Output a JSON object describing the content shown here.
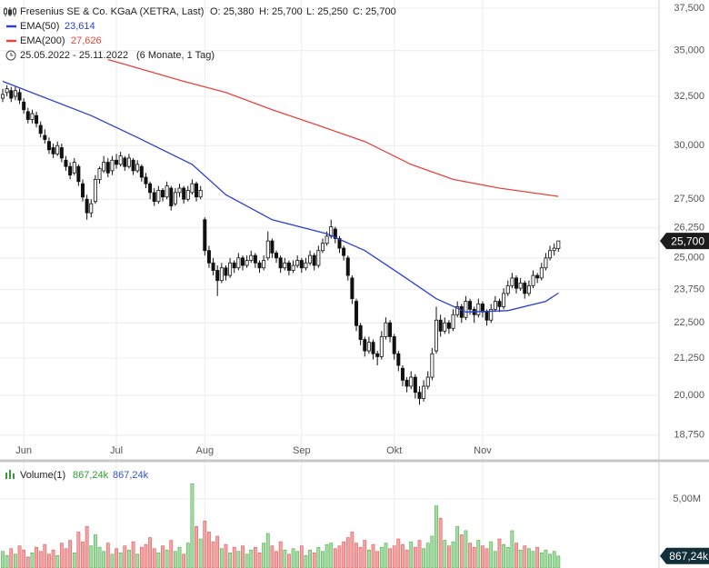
{
  "chart_data": {
    "type": "candlestick",
    "title": "Fresenius SE & Co. KGaA (XETRA, Last)",
    "header_values": [
      "O: 25,380",
      "H: 25,700",
      "L: 25,250",
      "C: 25,700"
    ],
    "subtitle": "25.05.2022 - 25.11.2022",
    "period": "(6 Monate, 1 Tag)",
    "last_label": "25,700",
    "log_scale": true,
    "grid": true,
    "up_color": "#ffffff",
    "down_color": "#111111",
    "xlim": [
      -0.65,
      155.9
    ],
    "xticks": [
      {
        "value": 5,
        "label": "Jun"
      },
      {
        "value": 27,
        "label": "Jul"
      },
      {
        "value": 48,
        "label": "Aug"
      },
      {
        "value": 71,
        "label": "Sep"
      },
      {
        "value": 93,
        "label": "Okt"
      },
      {
        "value": 114,
        "label": "Nov"
      }
    ],
    "ylim": [
      18.04,
      38.0
    ],
    "yticks": [
      {
        "value": 37.5,
        "label": "37,500"
      },
      {
        "value": 35,
        "label": "35,000"
      },
      {
        "value": 32.5,
        "label": "32,500"
      },
      {
        "value": 30,
        "label": "30,000"
      },
      {
        "value": 27.5,
        "label": "27,500"
      },
      {
        "value": 26.25,
        "label": "26,250"
      },
      {
        "value": 25,
        "label": "25,000"
      },
      {
        "value": 23.75,
        "label": "23,750"
      },
      {
        "value": 22.5,
        "label": "22,500"
      },
      {
        "value": 21.25,
        "label": "21,250"
      },
      {
        "value": 20,
        "label": "20,000"
      },
      {
        "value": 18.75,
        "label": "18,750"
      }
    ],
    "ohlc": [
      [
        32.4,
        32.9,
        32.2,
        32.6
      ],
      [
        32.7,
        33.1,
        32.5,
        32.9
      ],
      [
        32.8,
        33.0,
        32.2,
        32.4
      ],
      [
        32.5,
        33.0,
        32.3,
        32.8
      ],
      [
        32.7,
        32.9,
        32.1,
        32.3
      ],
      [
        32.2,
        32.4,
        31.6,
        31.8
      ],
      [
        31.7,
        31.9,
        31.1,
        31.3
      ],
      [
        31.3,
        31.8,
        31.1,
        31.6
      ],
      [
        31.5,
        31.7,
        30.9,
        31.1
      ],
      [
        31.0,
        31.2,
        30.4,
        30.6
      ],
      [
        30.5,
        30.8,
        30.1,
        30.3
      ],
      [
        30.2,
        30.4,
        29.6,
        29.8
      ],
      [
        29.9,
        30.1,
        29.4,
        29.6
      ],
      [
        29.6,
        30.2,
        29.5,
        30.0
      ],
      [
        29.9,
        30.1,
        29.2,
        29.4
      ],
      [
        29.3,
        29.5,
        28.8,
        29.0
      ],
      [
        29.0,
        29.2,
        28.4,
        28.6
      ],
      [
        28.7,
        29.4,
        28.6,
        29.2
      ],
      [
        29.0,
        29.1,
        28.1,
        28.3
      ],
      [
        28.2,
        28.4,
        27.4,
        27.6
      ],
      [
        27.5,
        27.7,
        26.6,
        26.9
      ],
      [
        26.9,
        27.5,
        26.7,
        27.3
      ],
      [
        27.4,
        28.6,
        27.3,
        28.4
      ],
      [
        28.4,
        29.0,
        28.2,
        28.9
      ],
      [
        28.8,
        29.5,
        28.7,
        29.2
      ],
      [
        29.2,
        29.4,
        28.5,
        28.7
      ],
      [
        28.8,
        29.5,
        28.6,
        29.3
      ],
      [
        29.3,
        29.6,
        28.9,
        29.1
      ],
      [
        29.1,
        29.7,
        29.0,
        29.5
      ],
      [
        29.4,
        29.5,
        28.8,
        29.0
      ],
      [
        29.0,
        29.6,
        28.9,
        29.4
      ],
      [
        29.3,
        29.4,
        28.6,
        28.8
      ],
      [
        28.8,
        29.3,
        28.7,
        29.1
      ],
      [
        29.0,
        29.1,
        28.3,
        28.5
      ],
      [
        28.5,
        28.7,
        28.0,
        28.2
      ],
      [
        28.2,
        28.3,
        27.5,
        27.8
      ],
      [
        27.8,
        28.0,
        27.2,
        27.4
      ],
      [
        27.4,
        28.1,
        27.3,
        27.9
      ],
      [
        27.9,
        28.0,
        27.4,
        27.6
      ],
      [
        27.6,
        28.3,
        27.5,
        28.1
      ],
      [
        28.0,
        28.1,
        27.0,
        27.2
      ],
      [
        27.3,
        28.0,
        27.2,
        27.8
      ],
      [
        27.8,
        28.2,
        27.6,
        28.0
      ],
      [
        28.0,
        28.1,
        27.3,
        27.5
      ],
      [
        27.5,
        28.1,
        27.4,
        27.9
      ],
      [
        27.8,
        28.4,
        27.7,
        28.2
      ],
      [
        28.2,
        28.3,
        27.4,
        27.6
      ],
      [
        27.6,
        28.1,
        27.5,
        27.9
      ],
      [
        26.6,
        26.7,
        25.1,
        25.3
      ],
      [
        25.3,
        25.5,
        24.6,
        24.8
      ],
      [
        24.8,
        25.0,
        24.3,
        24.5
      ],
      [
        24.5,
        24.7,
        23.5,
        24.1
      ],
      [
        24.1,
        24.8,
        24.0,
        24.6
      ],
      [
        24.6,
        24.7,
        24.1,
        24.3
      ],
      [
        24.3,
        25.0,
        24.2,
        24.8
      ],
      [
        24.8,
        24.9,
        24.4,
        24.6
      ],
      [
        24.6,
        25.2,
        24.5,
        25.0
      ],
      [
        25.0,
        25.1,
        24.5,
        24.7
      ],
      [
        24.7,
        25.1,
        24.6,
        24.9
      ],
      [
        24.9,
        25.3,
        24.8,
        25.1
      ],
      [
        25.1,
        25.2,
        24.6,
        24.8
      ],
      [
        24.8,
        24.9,
        24.4,
        24.6
      ],
      [
        24.6,
        25.1,
        24.5,
        24.9
      ],
      [
        25.0,
        26.1,
        24.9,
        25.7
      ],
      [
        25.7,
        25.8,
        25.0,
        25.2
      ],
      [
        25.2,
        25.3,
        24.8,
        25.0
      ],
      [
        25.0,
        25.1,
        24.4,
        24.6
      ],
      [
        24.6,
        25.0,
        24.5,
        24.8
      ],
      [
        24.8,
        24.9,
        24.3,
        24.5
      ],
      [
        24.5,
        24.9,
        24.4,
        24.7
      ],
      [
        24.7,
        25.1,
        24.6,
        24.9
      ],
      [
        24.9,
        25.0,
        24.4,
        24.6
      ],
      [
        24.6,
        25.0,
        24.5,
        24.8
      ],
      [
        24.8,
        25.3,
        24.7,
        25.1
      ],
      [
        25.1,
        25.2,
        24.5,
        24.7
      ],
      [
        24.7,
        25.5,
        24.6,
        25.3
      ],
      [
        25.3,
        25.8,
        25.2,
        25.6
      ],
      [
        25.6,
        26.1,
        25.5,
        25.9
      ],
      [
        25.9,
        26.6,
        25.8,
        26.3
      ],
      [
        26.2,
        26.3,
        25.6,
        25.8
      ],
      [
        25.8,
        25.9,
        25.2,
        25.4
      ],
      [
        25.4,
        25.5,
        24.9,
        25.1
      ],
      [
        25.0,
        25.1,
        24.1,
        24.3
      ],
      [
        24.2,
        24.3,
        23.2,
        23.4
      ],
      [
        23.3,
        23.4,
        22.2,
        22.4
      ],
      [
        22.4,
        22.5,
        21.7,
        21.9
      ],
      [
        21.9,
        22.0,
        21.3,
        21.5
      ],
      [
        21.5,
        22.0,
        21.4,
        21.8
      ],
      [
        21.8,
        21.9,
        21.2,
        21.4
      ],
      [
        21.4,
        21.5,
        21.0,
        21.3
      ],
      [
        21.3,
        22.2,
        21.2,
        22.0
      ],
      [
        22.0,
        22.7,
        21.9,
        22.5
      ],
      [
        22.5,
        22.6,
        21.8,
        22.0
      ],
      [
        22.0,
        22.1,
        21.2,
        21.4
      ],
      [
        21.4,
        21.5,
        20.8,
        21.0
      ],
      [
        20.9,
        21.0,
        20.3,
        20.5
      ],
      [
        20.5,
        20.6,
        20.1,
        20.3
      ],
      [
        20.3,
        20.8,
        20.2,
        20.6
      ],
      [
        20.6,
        20.7,
        19.9,
        20.1
      ],
      [
        20.1,
        20.3,
        19.7,
        19.9
      ],
      [
        19.9,
        20.5,
        19.8,
        20.3
      ],
      [
        20.3,
        20.8,
        20.2,
        20.6
      ],
      [
        20.6,
        21.6,
        20.5,
        21.4
      ],
      [
        21.5,
        23.1,
        21.4,
        22.6
      ],
      [
        22.6,
        22.8,
        22.0,
        22.2
      ],
      [
        22.2,
        22.7,
        22.1,
        22.5
      ],
      [
        22.5,
        22.6,
        22.1,
        22.3
      ],
      [
        22.3,
        23.0,
        22.2,
        22.8
      ],
      [
        22.8,
        23.3,
        22.7,
        23.1
      ],
      [
        23.1,
        23.2,
        22.5,
        22.7
      ],
      [
        22.7,
        23.5,
        22.6,
        23.3
      ],
      [
        23.3,
        23.4,
        22.8,
        23.0
      ],
      [
        23.0,
        23.1,
        22.5,
        22.8
      ],
      [
        22.8,
        23.4,
        22.7,
        23.2
      ],
      [
        23.2,
        23.3,
        22.7,
        22.9
      ],
      [
        22.9,
        23.0,
        22.4,
        22.6
      ],
      [
        22.6,
        23.2,
        22.5,
        23.0
      ],
      [
        23.0,
        23.5,
        22.9,
        23.3
      ],
      [
        23.3,
        23.4,
        22.9,
        23.1
      ],
      [
        23.1,
        23.8,
        23.0,
        23.6
      ],
      [
        23.6,
        24.1,
        23.5,
        23.9
      ],
      [
        23.9,
        24.4,
        23.8,
        24.2
      ],
      [
        24.2,
        24.3,
        23.6,
        23.8
      ],
      [
        23.8,
        24.2,
        23.7,
        24.0
      ],
      [
        24.0,
        24.1,
        23.4,
        23.6
      ],
      [
        23.6,
        24.1,
        23.5,
        23.9
      ],
      [
        23.9,
        24.5,
        23.8,
        24.3
      ],
      [
        24.3,
        24.4,
        24.0,
        24.2
      ],
      [
        24.2,
        24.8,
        24.1,
        24.6
      ],
      [
        24.6,
        25.2,
        24.5,
        25.0
      ],
      [
        25.0,
        25.5,
        24.9,
        25.3
      ],
      [
        25.3,
        25.6,
        25.1,
        25.4
      ],
      [
        25.38,
        25.7,
        25.25,
        25.7
      ]
    ],
    "series": [
      {
        "name": "EMA(50)",
        "color": "#2a3fd6",
        "value_label": "23,614",
        "x": [
          0,
          21,
          32,
          45,
          53,
          64,
          77,
          86,
          94,
          103,
          110,
          120,
          129,
          132
        ],
        "values": [
          33.3,
          31.5,
          30.4,
          29.1,
          27.7,
          26.6,
          26.0,
          25.3,
          24.4,
          23.4,
          22.9,
          22.95,
          23.3,
          23.614
        ]
      },
      {
        "name": "EMA(200)",
        "color": "#e8453c",
        "value_label": "27,626",
        "x": [
          25,
          43,
          53,
          64,
          75,
          86,
          97,
          107,
          118,
          132
        ],
        "values": [
          34.5,
          33.3,
          32.7,
          31.8,
          31.0,
          30.2,
          29.1,
          28.4,
          28.0,
          27.626
        ]
      }
    ],
    "volume": {
      "name": "Volume(1)",
      "last_label": "867,24k",
      "up_color": "#a6dba6",
      "down_color": "#f3a3a3",
      "ylim": [
        0,
        7.43
      ],
      "yticks": [
        {
          "value": 5,
          "label": "5,00M"
        }
      ],
      "values": [
        1.2,
        0.9,
        1.4,
        1.0,
        1.6,
        1.3,
        0.8,
        1.1,
        1.5,
        1.2,
        1.7,
        1.0,
        1.3,
        0.9,
        1.8,
        1.4,
        2.0,
        1.1,
        2.6,
        1.9,
        3.0,
        1.6,
        2.4,
        1.5,
        1.2,
        1.8,
        1.0,
        1.4,
        1.1,
        1.6,
        1.3,
        1.9,
        1.0,
        1.5,
        1.7,
        2.2,
        1.4,
        1.1,
        1.6,
        1.3,
        2.0,
        1.2,
        1.5,
        1.0,
        1.8,
        6.1,
        3.0,
        2.1,
        3.4,
        2.6,
        1.9,
        2.3,
        1.4,
        1.7,
        1.1,
        1.5,
        1.2,
        1.6,
        1.0,
        1.3,
        1.5,
        1.1,
        1.8,
        2.5,
        1.6,
        1.2,
        1.9,
        1.3,
        1.0,
        1.4,
        1.2,
        1.6,
        0.9,
        1.3,
        1.1,
        1.5,
        1.2,
        1.7,
        1.8,
        1.4,
        1.6,
        1.9,
        2.2,
        2.6,
        1.8,
        1.5,
        2.0,
        1.3,
        1.7,
        1.2,
        1.5,
        1.8,
        1.4,
        1.6,
        2.1,
        1.7,
        1.3,
        1.9,
        1.5,
        2.0,
        1.4,
        1.8,
        2.3,
        4.5,
        3.6,
        2.0,
        1.6,
        1.9,
        3.0,
        2.4,
        2.7,
        1.8,
        1.5,
        2.0,
        1.6,
        1.4,
        1.9,
        1.2,
        2.1,
        1.7,
        1.5,
        2.7,
        1.8,
        1.3,
        1.6,
        1.4,
        1.2,
        1.5,
        1.1,
        1.3,
        1.0,
        1.2,
        0.86724
      ]
    }
  }
}
